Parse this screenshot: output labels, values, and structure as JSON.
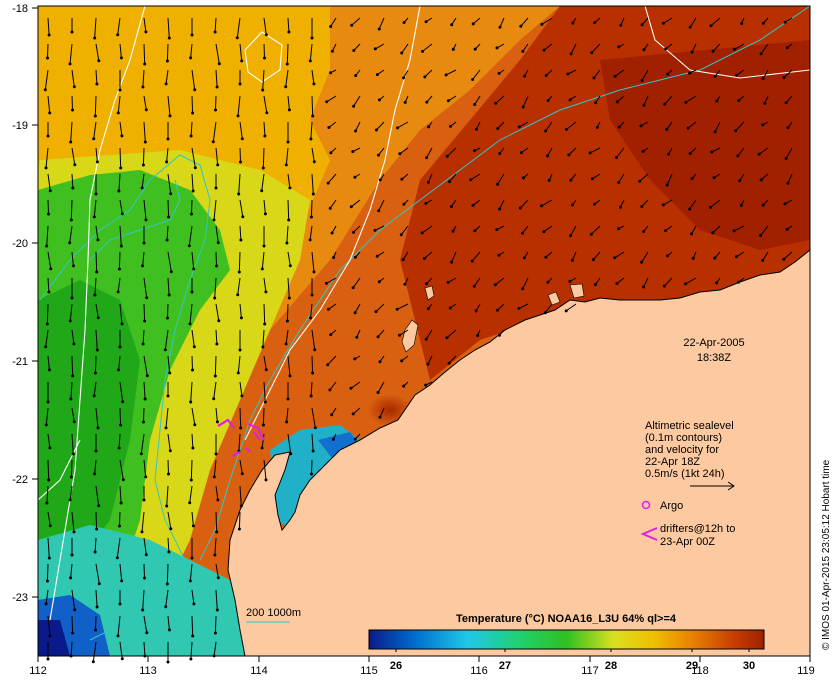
{
  "map": {
    "axes": {
      "lon_ticks": [
        "112",
        "113",
        "114",
        "115",
        "116",
        "117",
        "118",
        "119"
      ],
      "lat_ticks": [
        "-18",
        "-19",
        "-20",
        "-21",
        "-22",
        "-23"
      ]
    },
    "timestamp": {
      "date": "22-Apr-2005",
      "time": "18:38Z"
    },
    "legend": {
      "sealevel_lines": [
        "Altimetric sealevel",
        "(0.1m contours)",
        "and velocity for",
        "22-Apr 18Z",
        "0.5m/s (1kt 24h)"
      ],
      "argo_label": "Argo",
      "drifters_lines": [
        "drifters@12h to",
        "23-Apr 00Z"
      ],
      "depth_label": "200  1000m"
    },
    "colorbar": {
      "title": "Temperature (°C) NOAA16_L3U 64% ql>=4",
      "ticks": [
        "26",
        "27",
        "28",
        "29",
        "30"
      ]
    },
    "credit": "© IMOS 01-Apr-2015 23:05:12 Hobart time",
    "colors": {
      "land": "#fcc9a0",
      "warm_max": "#a02000",
      "cool_min": "#0a1a8a",
      "depth_contour": "#2ec8c8",
      "sealevel_contour": "#ffffff",
      "argo": "#e020e0",
      "drifter": "#e020e0"
    },
    "icons": [
      "velocity-arrow-icon",
      "argo-float-icon",
      "drifter-chevron-icon"
    ]
  }
}
